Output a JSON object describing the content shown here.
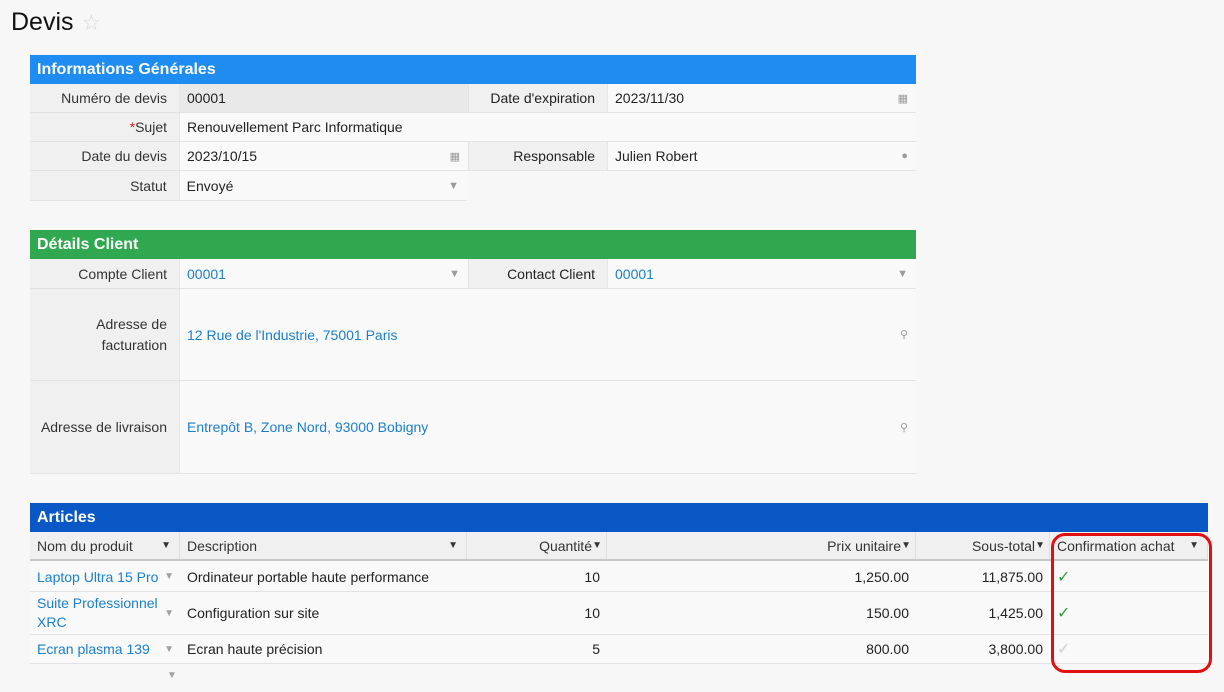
{
  "page": {
    "title": "Devis"
  },
  "general": {
    "header": "Informations Générales",
    "quote_number_label": "Numéro de devis",
    "quote_number": "00001",
    "expiration_label": "Date d'expiration",
    "expiration": "2023/11/30",
    "subject_required_mark": "*",
    "subject_label": "Sujet",
    "subject": "Renouvellement Parc Informatique",
    "quote_date_label": "Date du devis",
    "quote_date": "2023/10/15",
    "owner_label": "Responsable",
    "owner": "Julien Robert",
    "status_label": "Statut",
    "status": "Envoyé"
  },
  "client": {
    "header": "Détails Client",
    "account_label": "Compte Client",
    "account": "00001",
    "contact_label": "Contact Client",
    "contact": "00001",
    "billing_label_line1": "Adresse de",
    "billing_label_line2": "facturation",
    "billing": "12 Rue de l'Industrie, 75001 Paris",
    "shipping_label": "Adresse de livraison",
    "shipping": "Entrepôt B, Zone Nord, 93000 Bobigny"
  },
  "articles": {
    "header": "Articles",
    "columns": {
      "product": "Nom du produit",
      "description": "Description",
      "quantity": "Quantité",
      "unit_price": "Prix unitaire",
      "subtotal": "Sous-total",
      "confirmation": "Confirmation achat"
    },
    "rows": [
      {
        "product": "Laptop Ultra 15 Pro",
        "description": "Ordinateur portable haute performance",
        "quantity": "10",
        "unit_price": "1,250.00",
        "subtotal": "11,875.00",
        "confirmed": true
      },
      {
        "product_line1": "Suite Professionnel",
        "product_line2": "XRC",
        "description": "Configuration sur site",
        "quantity": "10",
        "unit_price": "150.00",
        "subtotal": "1,425.00",
        "confirmed": true
      },
      {
        "product": "Ecran plasma 139",
        "description": "Ecran haute précision",
        "quantity": "5",
        "unit_price": "800.00",
        "subtotal": "3,800.00",
        "confirmed": false
      }
    ]
  },
  "icons": {
    "star": "star-icon",
    "calendar": "calendar-icon",
    "user": "user-icon",
    "location": "map-pin-icon",
    "dropdown": "chevron-down-icon",
    "check": "check-icon"
  },
  "colors": {
    "general_header": "#1e8cf0",
    "client_header": "#2fa84f",
    "articles_header": "#0a58c6",
    "link": "#1b7fcc",
    "check": "#2e9e3a",
    "highlight": "#e01010"
  }
}
